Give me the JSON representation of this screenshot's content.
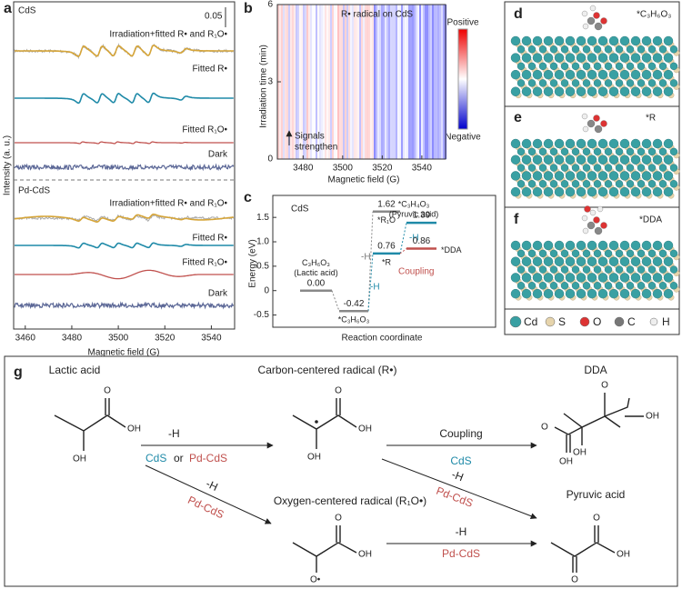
{
  "a": {
    "label": "a",
    "top_sample": "CdS",
    "scale_bar": "0.05",
    "top_traces": [
      "Irradiation+fitted R• and R₁O•",
      "Fitted R•",
      "Fitted R₁O•",
      "Dark"
    ],
    "bottom_sample": "Pd-CdS",
    "bottom_traces": [
      "Irradiation+fitted R• and R₁O•",
      "Fitted R•",
      "Fitted R₁O•",
      "Dark"
    ],
    "ylabel": "Intensity (a. u.)",
    "xlabel": "Magnetic field (G)",
    "xlim": [
      3455,
      3550
    ],
    "xticks": [
      3460,
      3480,
      3500,
      3520,
      3540
    ]
  },
  "b": {
    "label": "b",
    "title": "R• radical on CdS",
    "ylabel": "Irradiation time (min)",
    "ylim": [
      0,
      6
    ],
    "yticks": [
      0,
      3,
      6
    ],
    "xlabel": "Magnetic field (G)",
    "xlim": [
      3467,
      3552
    ],
    "xticks": [
      3480,
      3500,
      3520,
      3540
    ],
    "annotation": [
      "Signals",
      "strengthen"
    ],
    "colorbar": [
      "Positive",
      "Negative"
    ]
  },
  "c": {
    "label": "c",
    "sample": "CdS",
    "ylabel": "Energy (eV)",
    "xlabel": "Reaction coordinate",
    "ylim": [
      -0.75,
      1.95
    ],
    "yticks": [
      -0.5,
      0,
      0.5,
      {
        "value": 1,
        "label": "1.0"
      },
      1.5
    ],
    "levels": [
      {
        "name": [
          "C₃H₆O₃",
          "(Lactic acid)"
        ],
        "energy": 0,
        "energy_label": "0.00"
      },
      {
        "name": [
          "*C₃H₆O₃"
        ],
        "energy": -0.42
      },
      {
        "name": [
          "*R₁O"
        ],
        "energy": 1.62
      },
      {
        "name": [
          "*R"
        ],
        "energy": 0.76
      },
      {
        "name": [
          "*C₃H₄O₃",
          "(Pyruvic acid)"
        ],
        "energy": 1.39
      },
      {
        "name": [
          "*DDA"
        ],
        "energy": 0.86
      }
    ],
    "steps": [
      "-H",
      "-H",
      "-H"
    ],
    "coupling": "Coupling"
  },
  "d": {
    "label": "d",
    "adsorbate": "*C₃H₆O₃"
  },
  "e": {
    "label": "e",
    "adsorbate": "*R"
  },
  "f": {
    "label": "f",
    "adsorbate": "*DDA"
  },
  "legend": [
    "Cd",
    "S",
    "O",
    "C",
    "H"
  ],
  "g": {
    "label": "g",
    "lactic_acid": "Lactic acid",
    "carbon_radical": "Carbon-centered radical (R•)",
    "dda": "DDA",
    "oxygen_radical": "Oxygen-centered radical (R₁O•)",
    "pyruvic_acid": "Pyruvic acid",
    "arrow1": {
      "step": "-H",
      "catalyst": [
        "CdS",
        "or",
        "Pd-CdS"
      ]
    },
    "arrow2": {
      "step": "-H",
      "catalyst": "Pd-CdS"
    },
    "arrow3": {
      "step": "Coupling",
      "catalyst": "CdS"
    },
    "arrow4": {
      "step": "-H",
      "catalyst": "Pd-CdS"
    },
    "arrow5": {
      "step": "-H",
      "catalyst": "Pd-CdS"
    },
    "atoms": {
      "lactic": [
        "O",
        "OH",
        "OH"
      ],
      "r": [
        "O",
        "OH",
        "OH"
      ],
      "dda": [
        "O",
        "OH",
        "OH",
        "O",
        "OH"
      ],
      "r1o": [
        "O",
        "OH",
        "O•"
      ],
      "pyruvic": [
        "O",
        "OH",
        "O"
      ]
    }
  }
}
